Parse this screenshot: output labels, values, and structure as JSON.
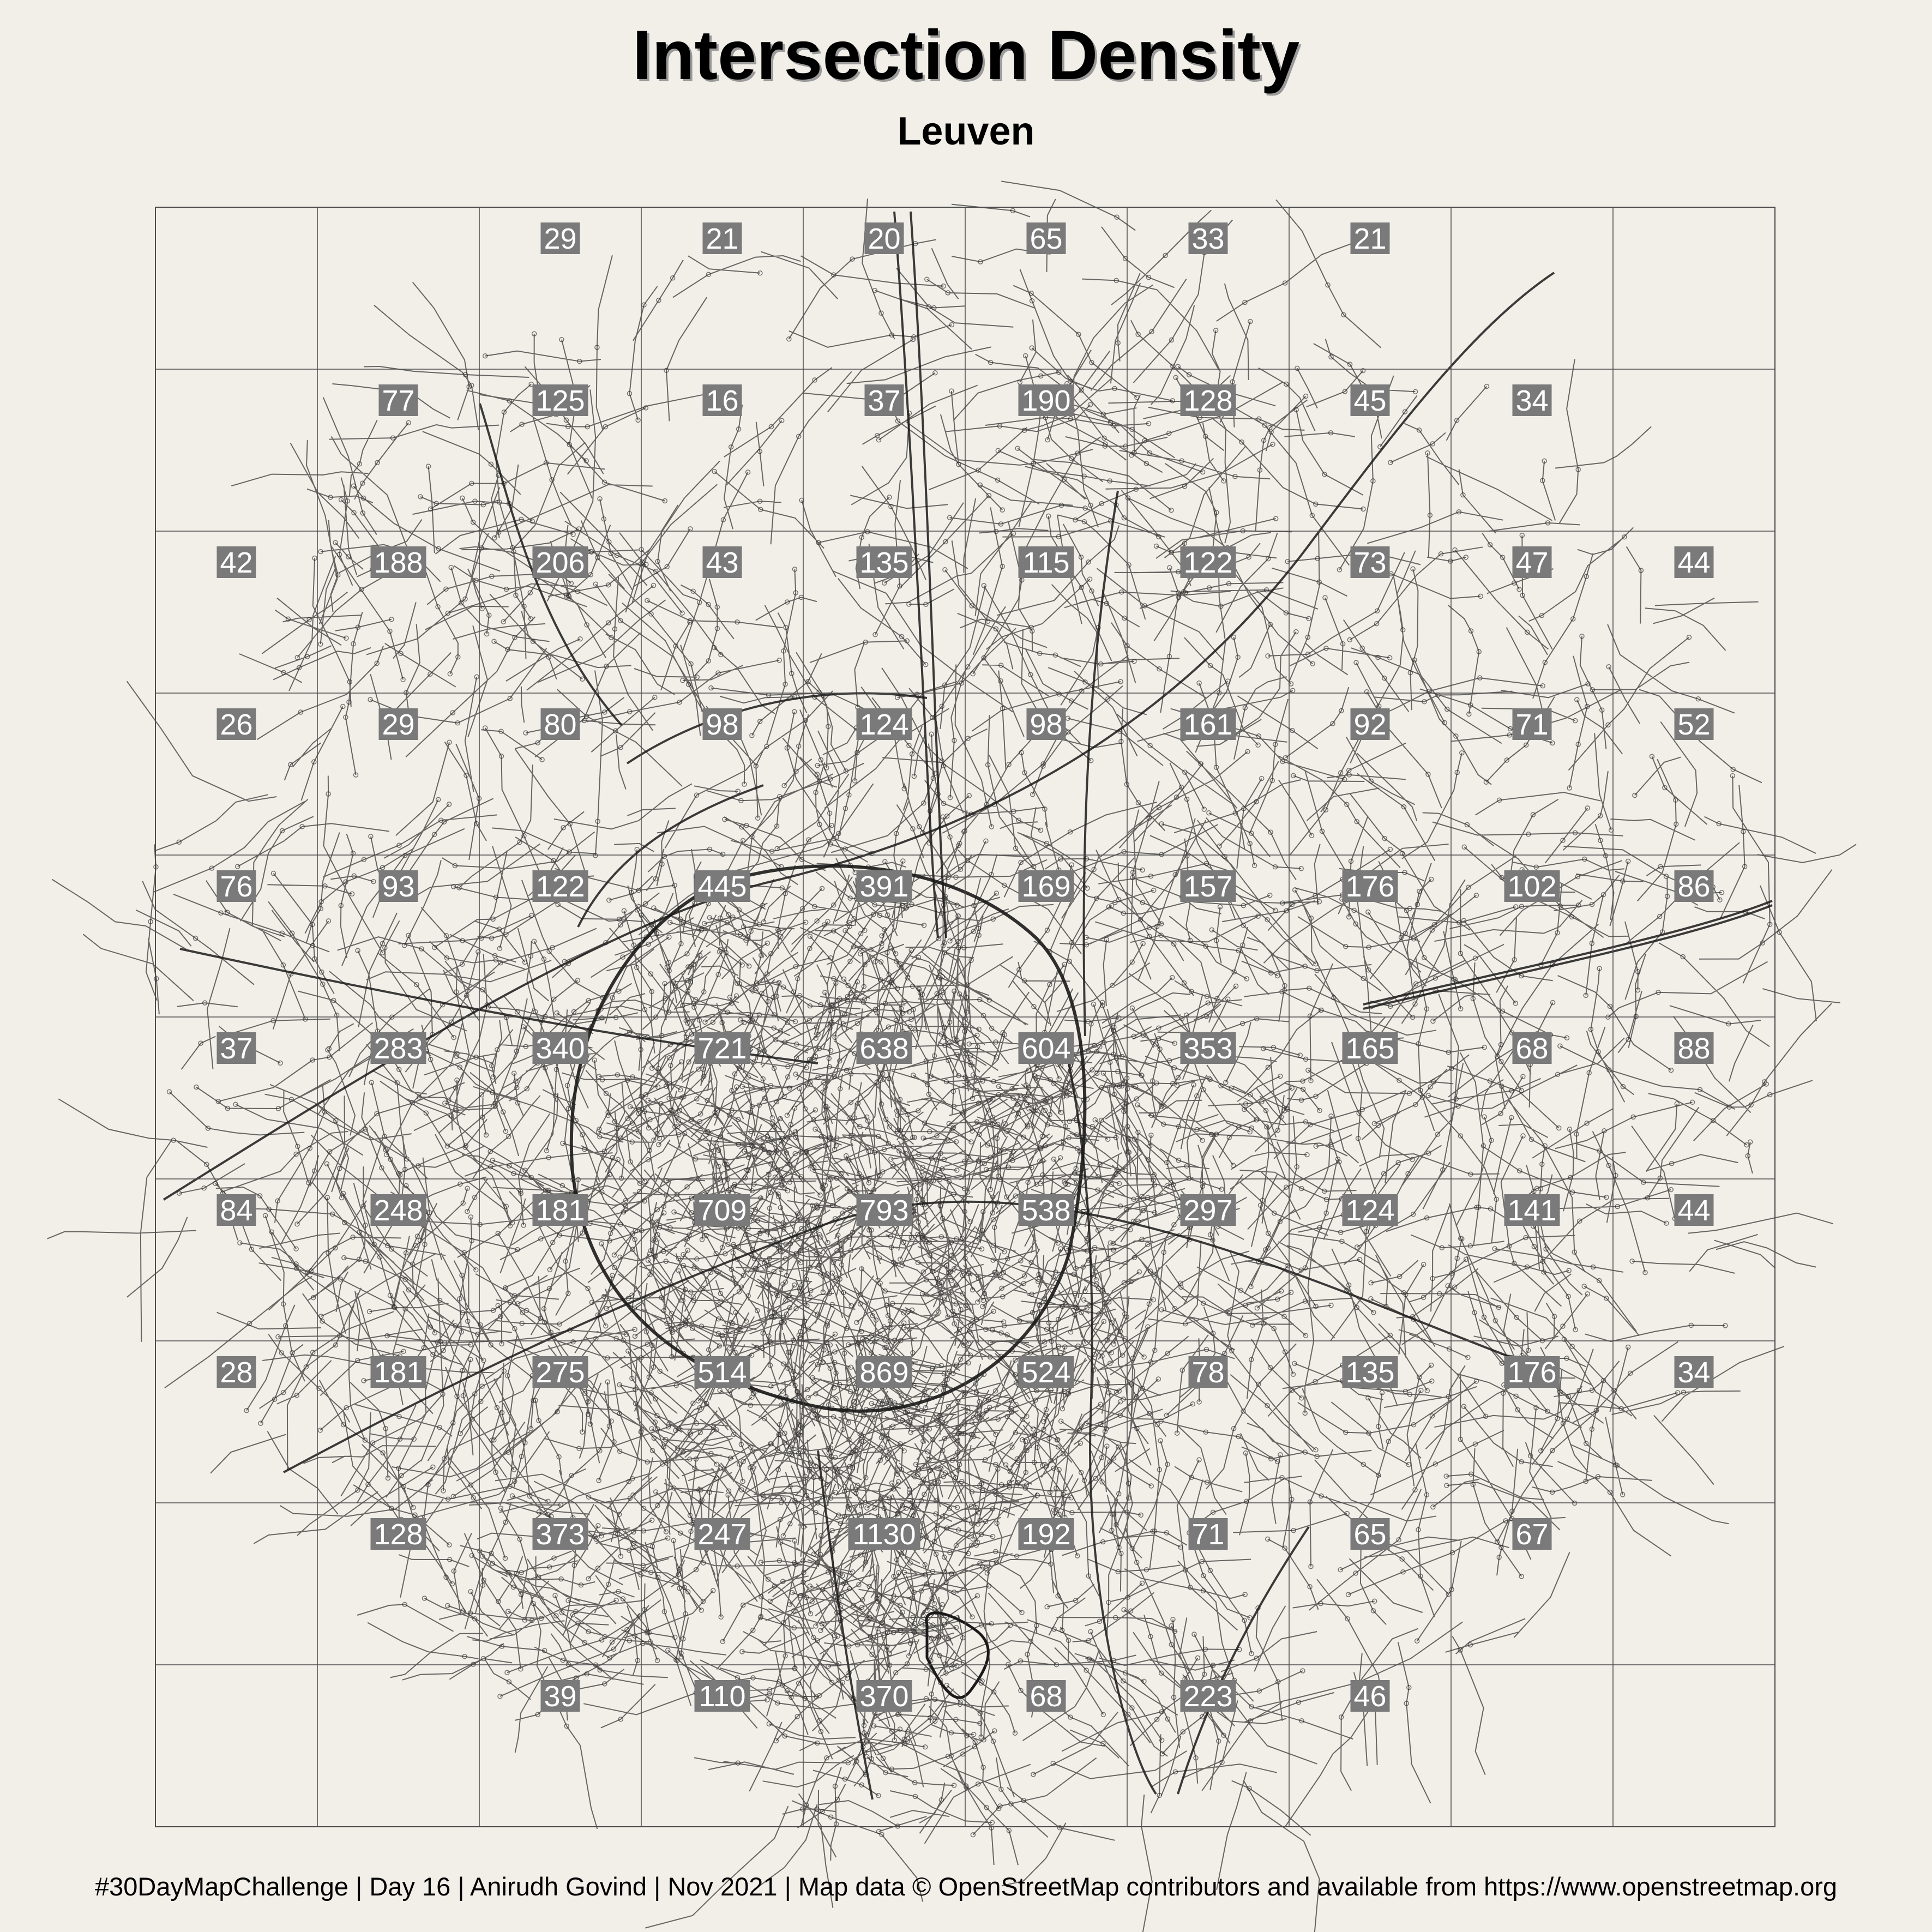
{
  "title": "Intersection Density",
  "subtitle": "Leuven",
  "caption": "#30DayMapChallenge | Day 16 | Anirudh Govind | Nov 2021 | Map data © OpenStreetMap contributors and available from https://www.openstreetmap.org",
  "colors": {
    "background": "#f2efe9",
    "grid_line": "#4a4a4a",
    "road": "#1a1a1a",
    "label_box": "#7a7a7a",
    "label_text": "#ffffff"
  },
  "grid": {
    "rows": 10,
    "cols": 10,
    "counts": [
      [
        null,
        null,
        29,
        21,
        20,
        65,
        33,
        21,
        null,
        null
      ],
      [
        null,
        77,
        125,
        16,
        37,
        190,
        128,
        45,
        34,
        null
      ],
      [
        42,
        188,
        206,
        43,
        135,
        115,
        122,
        73,
        47,
        44
      ],
      [
        26,
        29,
        80,
        98,
        124,
        98,
        161,
        92,
        71,
        52
      ],
      [
        76,
        93,
        122,
        445,
        391,
        169,
        157,
        176,
        102,
        86
      ],
      [
        37,
        283,
        340,
        721,
        638,
        604,
        353,
        165,
        68,
        88
      ],
      [
        84,
        248,
        181,
        709,
        793,
        538,
        297,
        124,
        141,
        44
      ],
      [
        28,
        181,
        275,
        514,
        869,
        524,
        78,
        135,
        176,
        34
      ],
      [
        null,
        128,
        373,
        247,
        1130,
        192,
        71,
        65,
        67,
        null
      ],
      [
        null,
        null,
        39,
        110,
        370,
        68,
        223,
        46,
        null,
        null
      ]
    ]
  }
}
